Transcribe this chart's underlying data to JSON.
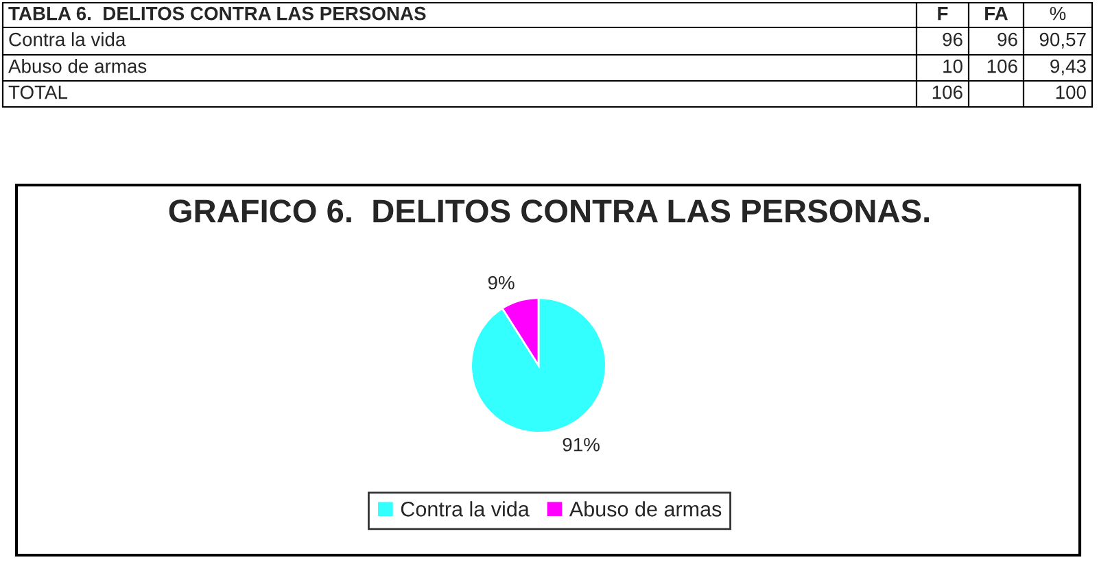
{
  "chart_data": {
    "type": "pie",
    "title": "GRAFICO 6.  DELITOS CONTRA LAS PERSONAS.",
    "categories": [
      "Contra la vida",
      "Abuso de armas"
    ],
    "values": [
      91,
      9
    ],
    "colors": [
      "#33ffff",
      "#ff00ff"
    ],
    "value_labels": [
      "91%",
      "9%"
    ],
    "legend": "bottom",
    "annotations": [
      "TABLA 6.  DELITOS CONTRA LAS PERSONAS",
      "F",
      "FA",
      "%",
      "Contra la vida",
      "96",
      "96",
      "90,57",
      "Abuso de armas",
      "10",
      "106",
      "9,43",
      "TOTAL",
      "106",
      "100"
    ]
  }
}
